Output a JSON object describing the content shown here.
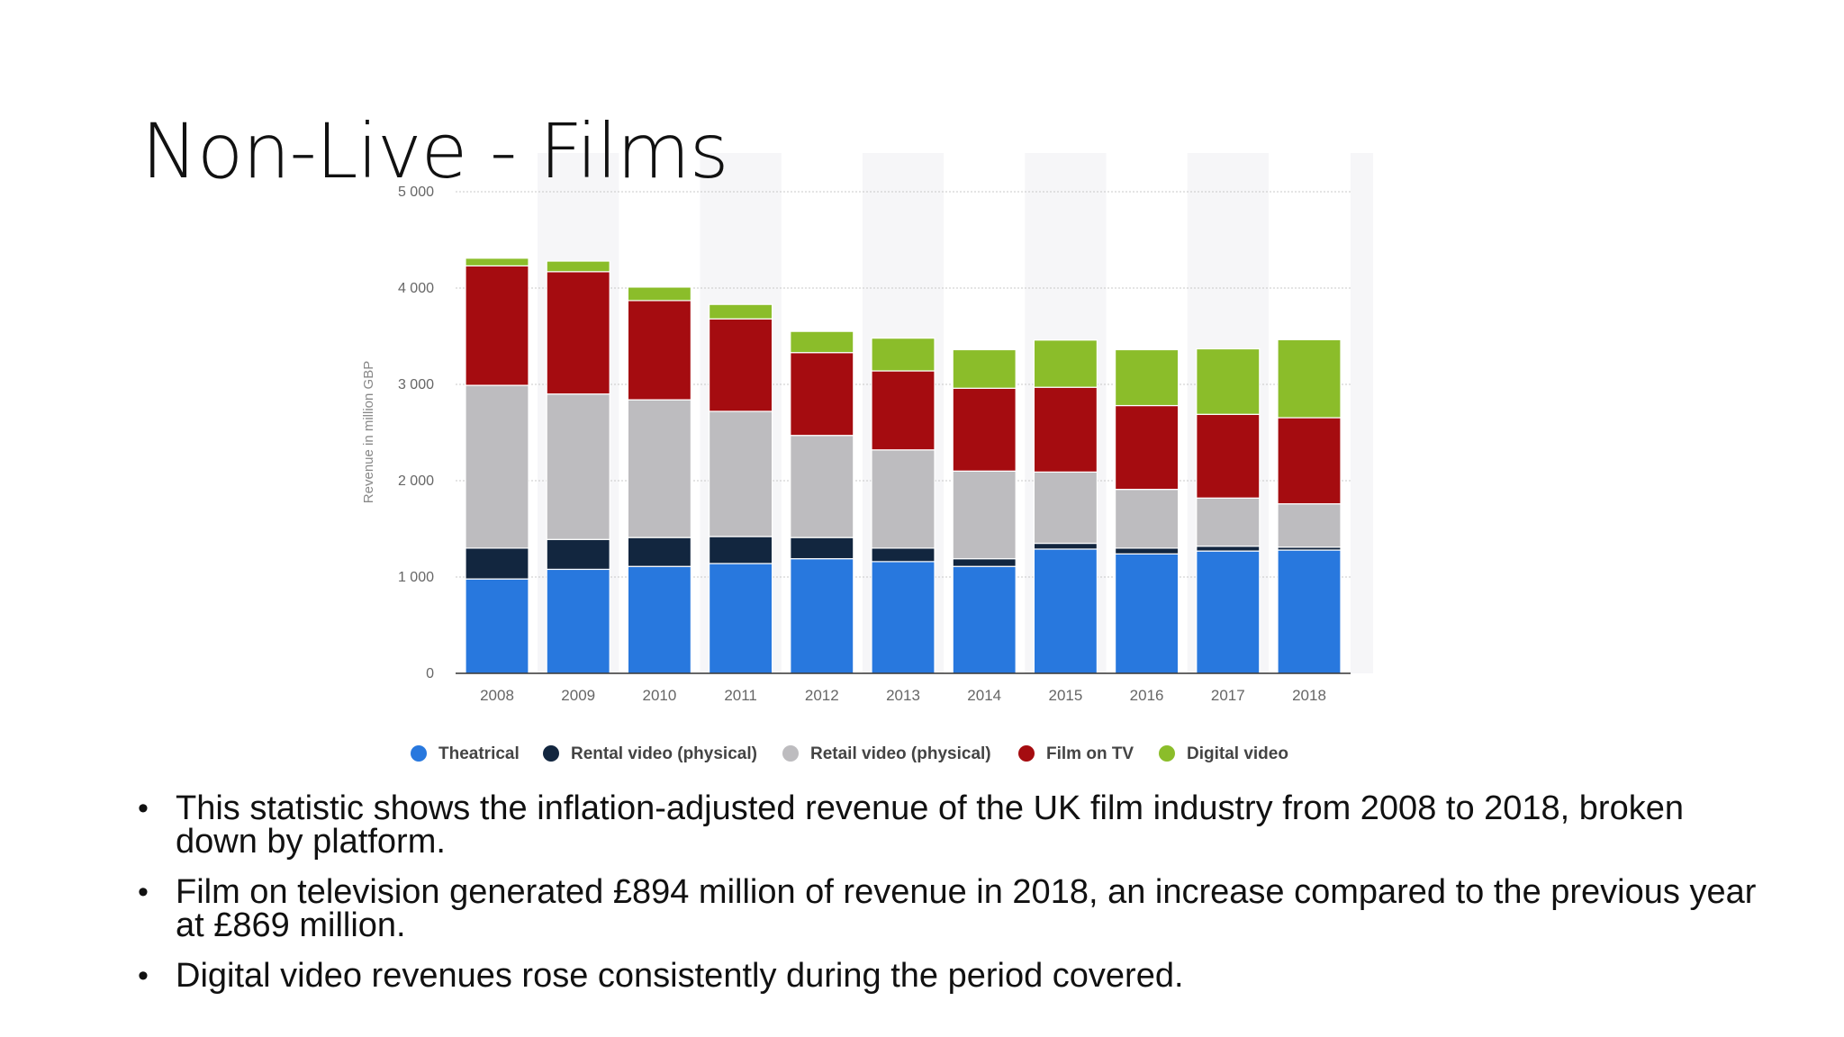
{
  "slide": {
    "title": "Non-Live - Films",
    "bullets": [
      "This statistic shows the inflation-adjusted revenue of the UK film industry from 2008 to 2018, broken down by platform.",
      "Film on television generated £894 million of revenue in 2018, an increase compared to the previous year at £869 million.",
      "Digital video revenues rose consistently during the period covered."
    ]
  },
  "chart_data": {
    "type": "bar",
    "stacked": true,
    "title": "",
    "xlabel": "",
    "ylabel": "Revenue in million GBP",
    "ylim": [
      0,
      5000
    ],
    "yticks": [
      0,
      1000,
      2000,
      3000,
      4000,
      5000
    ],
    "ytick_labels": [
      "0",
      "1 000",
      "2 000",
      "3 000",
      "4 000",
      "5 000"
    ],
    "grid": true,
    "legend_position": "bottom",
    "categories": [
      "2008",
      "2009",
      "2010",
      "2011",
      "2012",
      "2013",
      "2014",
      "2015",
      "2016",
      "2017",
      "2018"
    ],
    "series": [
      {
        "name": "Theatrical",
        "color": "#2878de",
        "values": [
          980,
          1080,
          1110,
          1140,
          1190,
          1160,
          1110,
          1290,
          1240,
          1270,
          1280
        ]
      },
      {
        "name": "Rental video (physical)",
        "color": "#12263f",
        "values": [
          320,
          310,
          300,
          280,
          220,
          140,
          80,
          60,
          60,
          50,
          30
        ]
      },
      {
        "name": "Retail video (physical)",
        "color": "#bdbcbf",
        "values": [
          1690,
          1510,
          1430,
          1300,
          1060,
          1020,
          910,
          740,
          610,
          500,
          450
        ]
      },
      {
        "name": "Film on TV",
        "color": "#a50c10",
        "values": [
          1240,
          1270,
          1030,
          960,
          860,
          820,
          860,
          880,
          870,
          869,
          894
        ]
      },
      {
        "name": "Digital video",
        "color": "#8bbd2a",
        "values": [
          80,
          110,
          140,
          150,
          220,
          340,
          400,
          490,
          580,
          680,
          810
        ]
      }
    ]
  }
}
